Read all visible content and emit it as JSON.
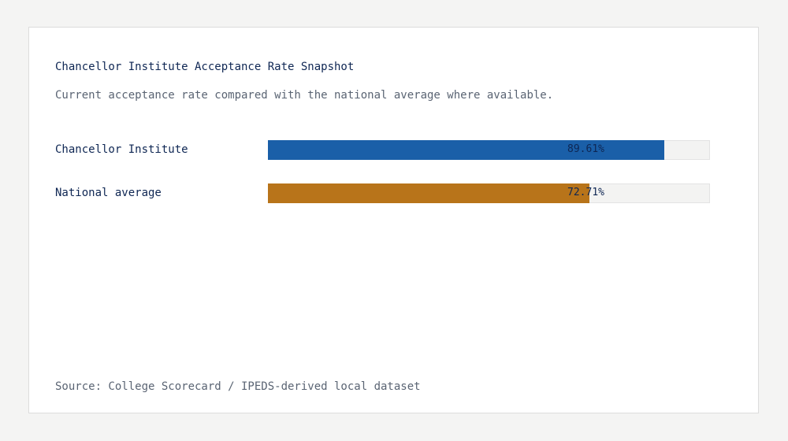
{
  "chart_data": {
    "type": "bar",
    "orientation": "horizontal",
    "title": "Chancellor Institute Acceptance Rate Snapshot",
    "subtitle": "Current acceptance rate compared with the national average where available.",
    "categories": [
      "Chancellor Institute",
      "National average"
    ],
    "values": [
      89.61,
      72.71
    ],
    "value_labels": [
      "89.61%",
      "72.71%"
    ],
    "colors": [
      "#1a5fa8",
      "#b8741a"
    ],
    "xlim": [
      0,
      100
    ],
    "grid": false,
    "source": "Source: College Scorecard / IPEDS-derived local dataset"
  }
}
